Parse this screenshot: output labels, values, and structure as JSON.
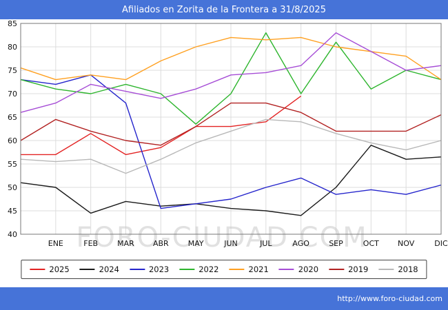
{
  "title": "Afiliados en Zorita de la Frontera a 31/8/2025",
  "watermark": "FORO-CIUDAD.COM",
  "footer_url": "http://www.foro-ciudad.com",
  "colors": {
    "bar": "#4673d8",
    "grid": "#dcdcdc",
    "plot_border": "#777777",
    "watermark": "#c9c9c9",
    "axis_text": "#111111"
  },
  "chart_data": {
    "type": "line",
    "title": "Afiliados en Zorita de la Frontera a 31/8/2025",
    "categories": [
      "",
      "ENE",
      "FEB",
      "MAR",
      "ABR",
      "MAY",
      "JUN",
      "JUL",
      "AGO",
      "SEP",
      "OCT",
      "NOV",
      "DIC"
    ],
    "ylim": [
      40,
      85
    ],
    "yticks": [
      40,
      45,
      50,
      55,
      60,
      65,
      70,
      75,
      80,
      85
    ],
    "grid": true,
    "legend_position": "bottom",
    "series": [
      {
        "name": "2025",
        "color": "#e32222",
        "values": [
          57,
          57,
          61.5,
          57,
          58.5,
          63,
          63,
          64,
          69.5
        ]
      },
      {
        "name": "2024",
        "color": "#1a1a1a",
        "values": [
          51,
          50,
          44.5,
          47,
          46,
          46.5,
          45.5,
          45,
          44,
          50,
          59,
          56,
          56.5
        ]
      },
      {
        "name": "2023",
        "color": "#2525cc",
        "values": [
          73,
          72,
          74,
          68,
          45.5,
          46.5,
          47.5,
          50,
          52,
          48.5,
          49.5,
          48.5,
          50.5
        ]
      },
      {
        "name": "2022",
        "color": "#2db52d",
        "values": [
          73,
          71,
          70,
          72,
          70,
          63.5,
          70,
          83,
          70,
          81,
          71,
          75,
          73
        ]
      },
      {
        "name": "2021",
        "color": "#ffa020",
        "values": [
          75.5,
          73,
          74,
          73,
          77,
          80,
          82,
          81.5,
          82,
          80,
          79,
          78,
          73
        ]
      },
      {
        "name": "2020",
        "color": "#a64dd6",
        "values": [
          66,
          68,
          72,
          70.5,
          69,
          71,
          74,
          74.5,
          76,
          83,
          79,
          75,
          76
        ]
      },
      {
        "name": "2019",
        "color": "#b22222",
        "values": [
          60,
          64.5,
          62,
          60,
          59,
          63,
          68,
          68,
          66,
          62,
          62,
          62,
          65.5
        ]
      },
      {
        "name": "2018",
        "color": "#b8b8b8",
        "values": [
          56,
          55.5,
          56,
          53,
          56,
          59.5,
          62,
          64.5,
          64,
          61.5,
          59.5,
          58,
          60
        ]
      }
    ]
  }
}
